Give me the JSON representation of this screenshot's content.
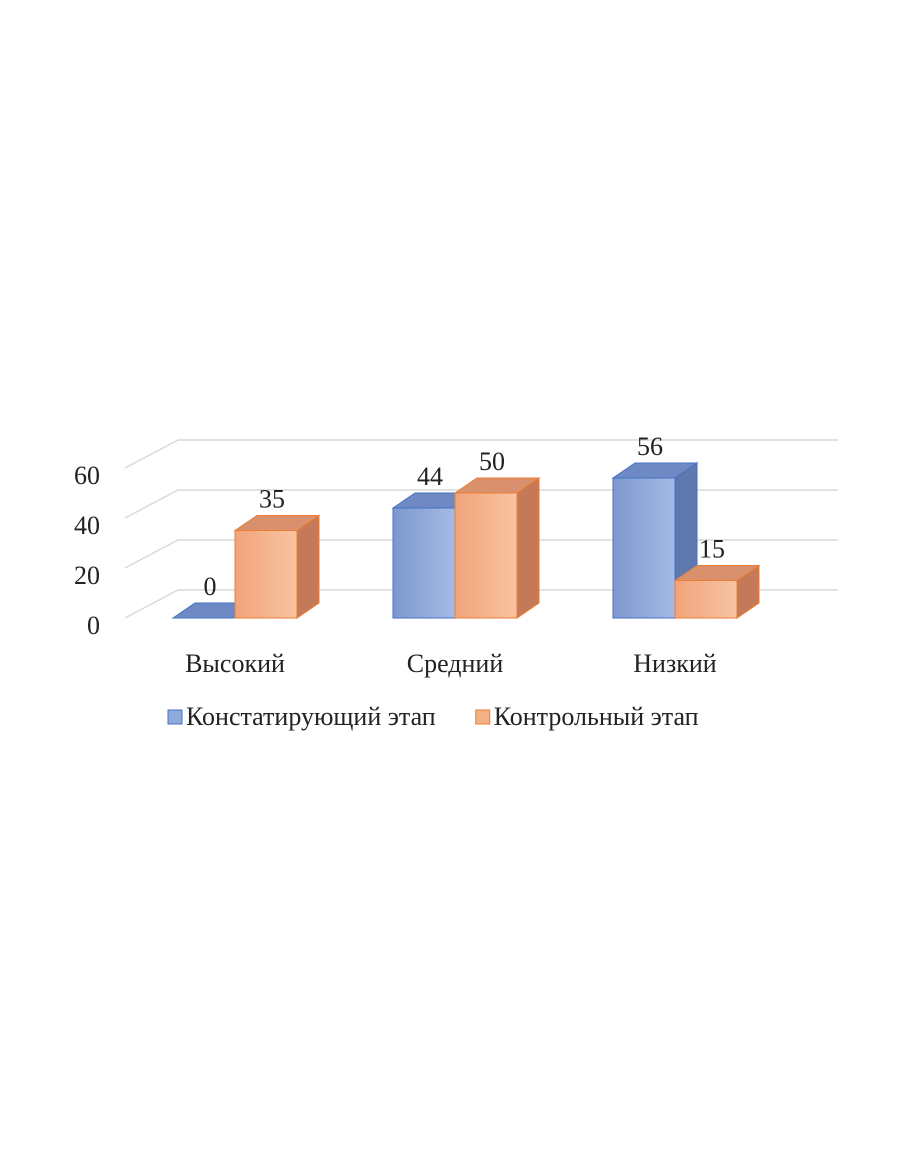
{
  "chart_data": {
    "type": "bar3d",
    "categories": [
      "Высокий",
      "Средний",
      "Низкий"
    ],
    "series": [
      {
        "name": "Констатирующий этап",
        "color": "#8faadc",
        "values": [
          0,
          44,
          56
        ]
      },
      {
        "name": "Контрольный этап",
        "color": "#f4b183",
        "values": [
          35,
          50,
          15
        ]
      }
    ],
    "ylim": [
      0,
      60
    ],
    "yticks": [
      0,
      20,
      40,
      60
    ],
    "grid": true,
    "legend": "bottom"
  }
}
